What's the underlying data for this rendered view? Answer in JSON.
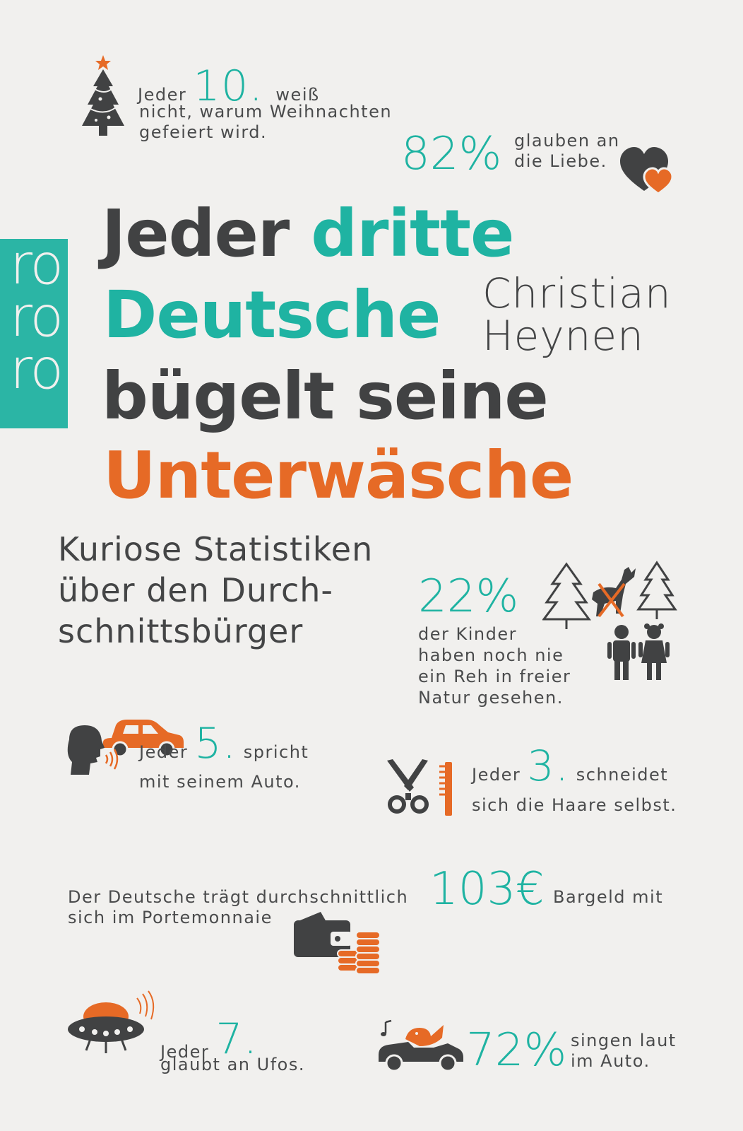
{
  "publisher_logo": [
    "ro",
    "ro",
    "ro"
  ],
  "title": {
    "line1_a": "Jeder",
    "line1_b": "dritte",
    "line2": "Deutsche",
    "line3": "bügelt seine",
    "line4": "Unterwäsche"
  },
  "author": [
    "Christian",
    "Heynen"
  ],
  "subtitle": [
    "Kuriose Statistiken",
    "über den Durch-",
    "schnittsbürger"
  ],
  "stats": {
    "christmas": {
      "pre": "Jeder",
      "num": "10.",
      "post": "weiß",
      "line2": "nicht, warum Weihnachten",
      "line3": "gefeiert wird.",
      "icon": "christmas-tree-icon"
    },
    "love": {
      "num": "82%",
      "line1": "glauben an",
      "line2": "die Liebe.",
      "icon": "hearts-icon"
    },
    "deer": {
      "num": "22%",
      "lines": [
        "der Kinder",
        "haben noch nie",
        "ein Reh in freier",
        "Natur gesehen."
      ],
      "icon": "deer-forest-icon"
    },
    "car_talk": {
      "pre": "Jeder",
      "num": "5.",
      "post": "spricht",
      "line2": "mit seinem Auto.",
      "icon": "talking-car-icon"
    },
    "haircut": {
      "pre": "Jeder",
      "num": "3.",
      "post": "schneidet",
      "line2": "sich die Haare selbst.",
      "icon": "scissors-comb-icon"
    },
    "cash": {
      "pre": "Der Deutsche trägt durchschnittlich",
      "num": "103€",
      "post": "Bargeld mit",
      "line2": "sich im Portemonnaie",
      "icon": "wallet-coins-icon"
    },
    "ufo": {
      "pre": "Jeder",
      "num": "7.",
      "line2": "glaubt an Ufos.",
      "icon": "ufo-icon"
    },
    "singing": {
      "num": "72%",
      "line1": "singen laut",
      "line2": "im Auto.",
      "icon": "singing-car-icon"
    }
  },
  "colors": {
    "teal": "#1fb3a2",
    "orange": "#e66a26",
    "dark": "#414243",
    "background": "#f1f0ee"
  }
}
